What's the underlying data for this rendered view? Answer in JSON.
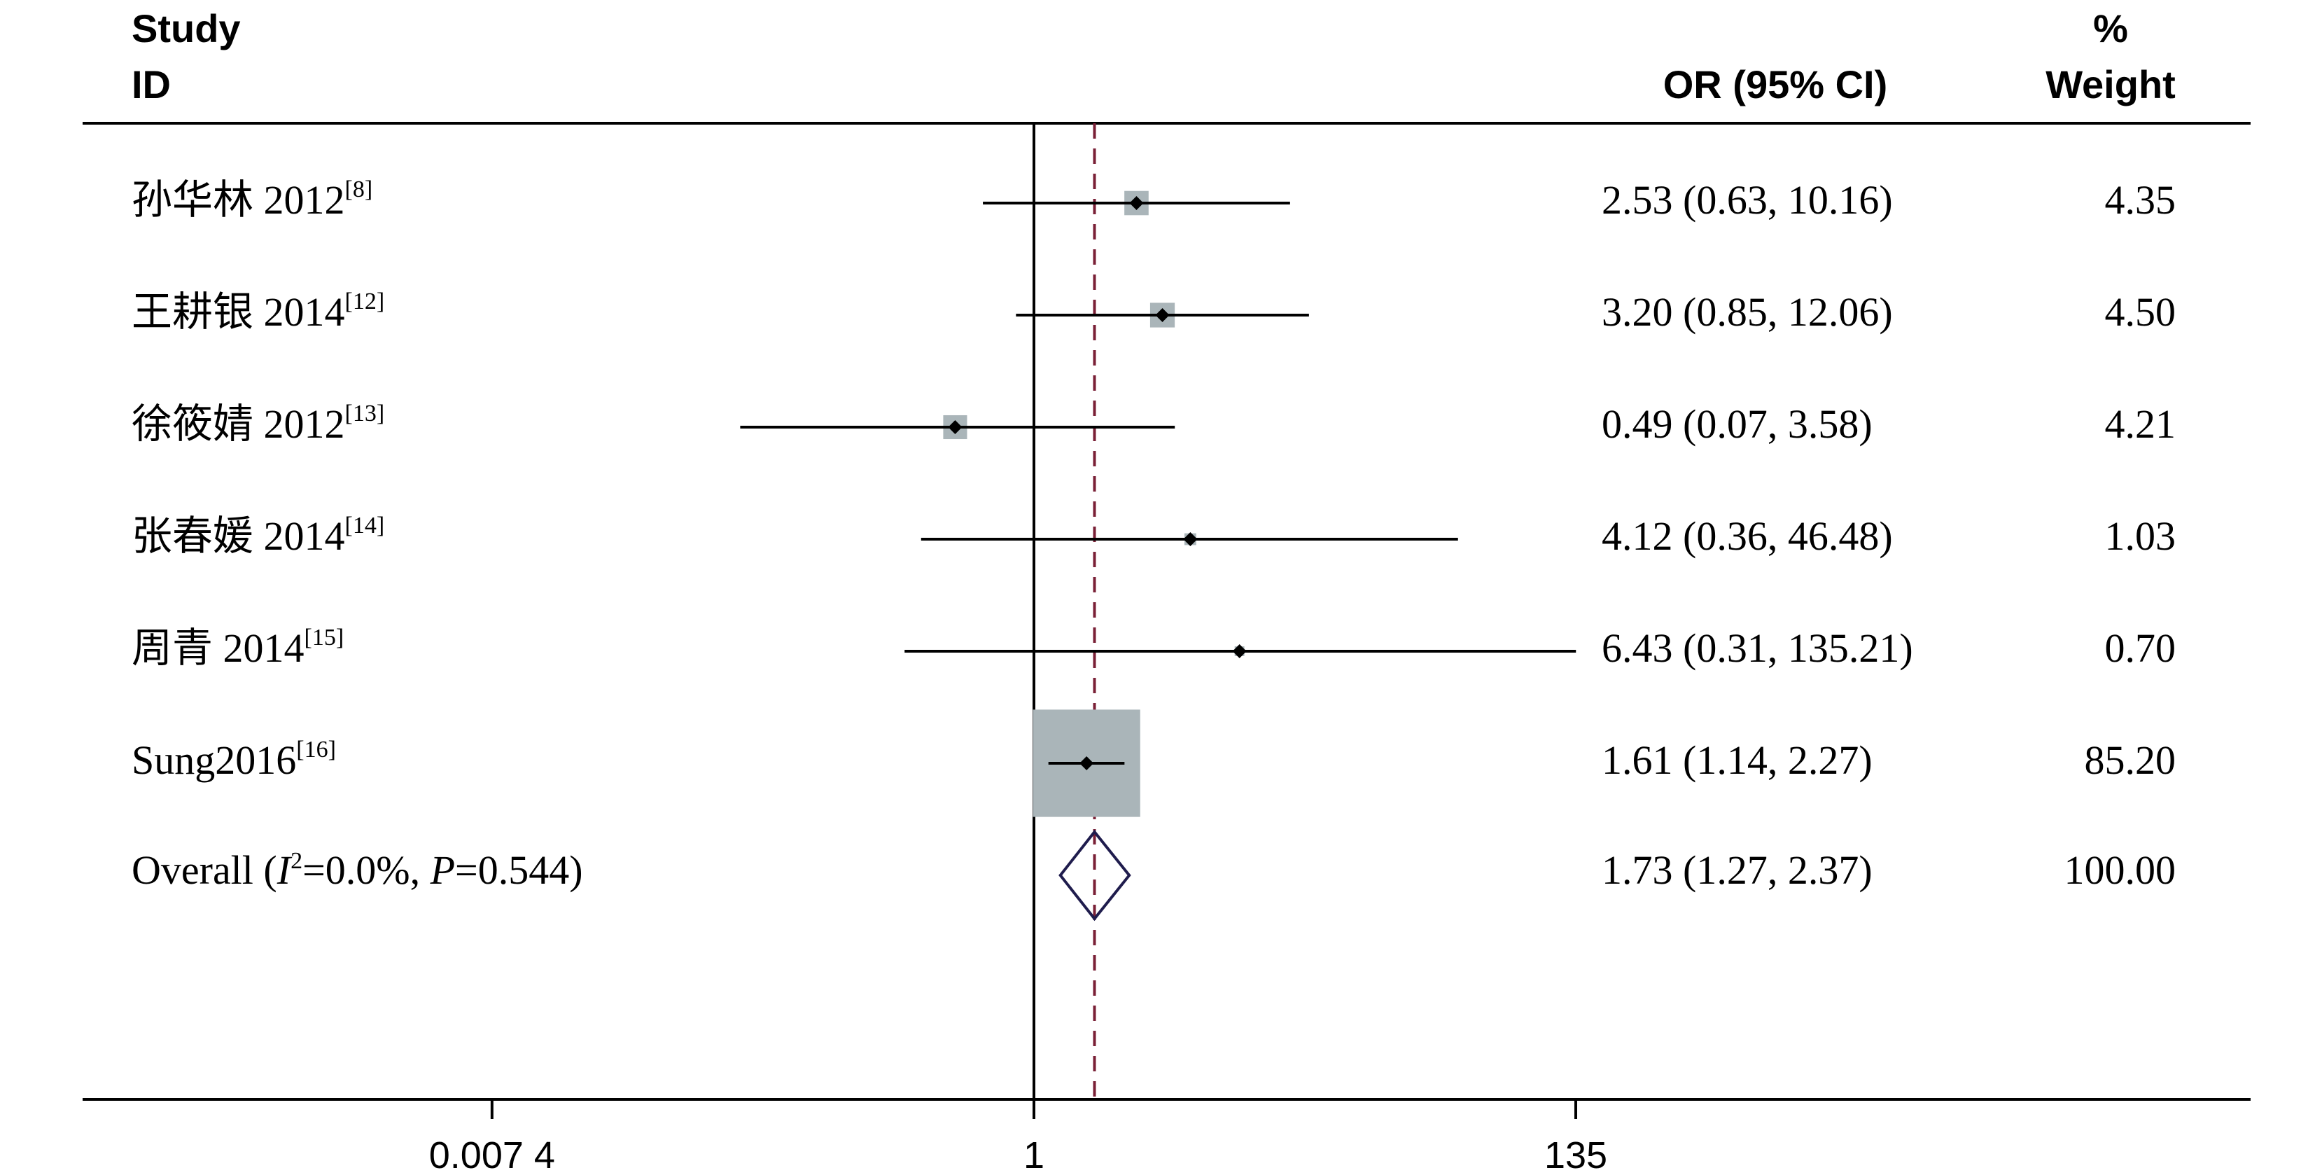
{
  "headers": {
    "study_line1": "Study",
    "study_line2": "ID",
    "or_label": "OR (95% CI)",
    "weight_line1": "%",
    "weight_line2": "Weight"
  },
  "overall_label": {
    "prefix": "Overall  (",
    "i_symbol": "I",
    "i_exponent": "2",
    "i_value": "=0.0%, ",
    "p_symbol": "P",
    "p_value": "=0.544)"
  },
  "chart_data": {
    "type": "forest",
    "measure": "OR",
    "x_scale": "log",
    "x_ticks": [
      {
        "value": 0.0074,
        "label": "0.007 4"
      },
      {
        "value": 1,
        "label": "1"
      },
      {
        "value": 135,
        "label": "135"
      }
    ],
    "reference_line": 1,
    "pooled_line": 1.73,
    "studies": [
      {
        "name": "孙华林 2012",
        "ref": "[8]",
        "or": 2.53,
        "ci_low": 0.63,
        "ci_high": 10.16,
        "weight": 4.35,
        "or_label": "2.53 (0.63, 10.16)",
        "weight_label": "4.35"
      },
      {
        "name": "王耕银 2014",
        "ref": "[12]",
        "or": 3.2,
        "ci_low": 0.85,
        "ci_high": 12.06,
        "weight": 4.5,
        "or_label": "3.20 (0.85, 12.06)",
        "weight_label": "4.50"
      },
      {
        "name": "徐筱婧 2012",
        "ref": "[13]",
        "or": 0.49,
        "ci_low": 0.07,
        "ci_high": 3.58,
        "weight": 4.21,
        "or_label": "0.49 (0.07, 3.58)",
        "weight_label": "4.21"
      },
      {
        "name": "张春媛 2014",
        "ref": "[14]",
        "or": 4.12,
        "ci_low": 0.36,
        "ci_high": 46.48,
        "weight": 1.03,
        "or_label": "4.12 (0.36, 46.48)",
        "weight_label": "1.03"
      },
      {
        "name": "周青 2014",
        "ref": "[15]",
        "or": 6.43,
        "ci_low": 0.31,
        "ci_high": 135.21,
        "weight": 0.7,
        "or_label": "6.43 (0.31, 135.21)",
        "weight_label": "0.70"
      },
      {
        "name": "Sung2016",
        "ref": "[16]",
        "or": 1.61,
        "ci_low": 1.14,
        "ci_high": 2.27,
        "weight": 85.2,
        "or_label": "1.61 (1.14, 2.27)",
        "weight_label": "85.20"
      }
    ],
    "overall": {
      "or": 1.73,
      "ci_low": 1.27,
      "ci_high": 2.37,
      "weight": 100.0,
      "or_label": "1.73 (1.27, 2.37)",
      "weight_label": "100.00"
    },
    "heterogeneity": {
      "i2": "0.0%",
      "p": 0.544
    },
    "colors": {
      "weight_box": "#aab5b9",
      "diamond": "#1f1c4d",
      "pooled_line": "#7a2036",
      "lines": "#000000"
    }
  }
}
